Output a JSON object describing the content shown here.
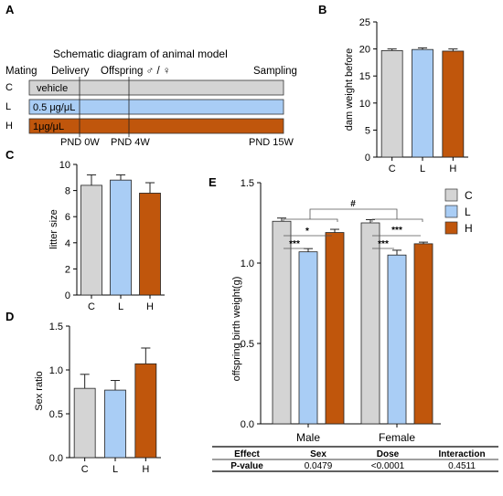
{
  "colors": {
    "C": "#d4d4d4",
    "L": "#a9cdf5",
    "H": "#c0560c"
  },
  "panel_a": {
    "letter": "A",
    "title": "Schematic diagram of animal model",
    "stage_labels": [
      "Mating",
      "Delivery",
      "Offspring ♂ / ♀",
      "Sampling"
    ],
    "groups": [
      {
        "key": "C",
        "treatment": "vehicle"
      },
      {
        "key": "L",
        "treatment": "0.5 μg/μL"
      },
      {
        "key": "H",
        "treatment": "1μg/μL"
      }
    ],
    "time_labels": [
      "PND 0W",
      "PND 4W",
      "PND 15W"
    ]
  },
  "panel_b": {
    "letter": "B",
    "chart_data": {
      "type": "bar",
      "categories": [
        "C",
        "L",
        "H"
      ],
      "values": [
        19.7,
        19.9,
        19.6
      ],
      "errors": [
        0.3,
        0.3,
        0.4
      ],
      "ylabel": "dam weight before",
      "ylim": [
        0,
        25
      ],
      "yticks": [
        "0",
        "5",
        "10",
        "15",
        "20",
        "25"
      ]
    }
  },
  "panel_c": {
    "letter": "C",
    "chart_data": {
      "type": "bar",
      "categories": [
        "C",
        "L",
        "H"
      ],
      "values": [
        8.4,
        8.8,
        7.8
      ],
      "errors": [
        0.8,
        0.4,
        0.8
      ],
      "ylabel": "litter size",
      "ylim": [
        0,
        10
      ],
      "yticks": [
        "0",
        "2",
        "4",
        "6",
        "8",
        "10"
      ]
    }
  },
  "panel_d": {
    "letter": "D",
    "chart_data": {
      "type": "bar",
      "categories": [
        "C",
        "L",
        "H"
      ],
      "values": [
        0.79,
        0.77,
        1.07
      ],
      "errors": [
        0.16,
        0.11,
        0.18
      ],
      "ylabel": "Sex ratio",
      "ylim": [
        0,
        1.5
      ],
      "yticks": [
        "0.0",
        "0.5",
        "1.0",
        "1.5"
      ]
    }
  },
  "panel_e": {
    "letter": "E",
    "chart_data": {
      "type": "bar",
      "categories": [
        "Male",
        "Female"
      ],
      "series": [
        {
          "name": "C",
          "values": [
            1.26,
            1.25
          ],
          "errors": [
            0.02,
            0.02
          ]
        },
        {
          "name": "L",
          "values": [
            1.07,
            1.05
          ],
          "errors": [
            0.02,
            0.03
          ]
        },
        {
          "name": "H",
          "values": [
            1.19,
            1.12
          ],
          "errors": [
            0.02,
            0.01
          ]
        }
      ],
      "ylabel": "offspring birth weight(g)",
      "ylim": [
        0,
        1.5
      ],
      "yticks": [
        "0.0",
        "0.5",
        "1.0",
        "1.5"
      ],
      "legend": "right",
      "annotations": {
        "overall": "#",
        "male_LvC": "***",
        "male_HvC": "*",
        "female_LvC": "***",
        "female_HvC": "***"
      }
    },
    "table": {
      "headers": [
        "Effect",
        "Sex",
        "Dose",
        "Interaction"
      ],
      "row": [
        "P-value",
        "0.0479",
        "<0.0001",
        "0.4511"
      ]
    }
  }
}
